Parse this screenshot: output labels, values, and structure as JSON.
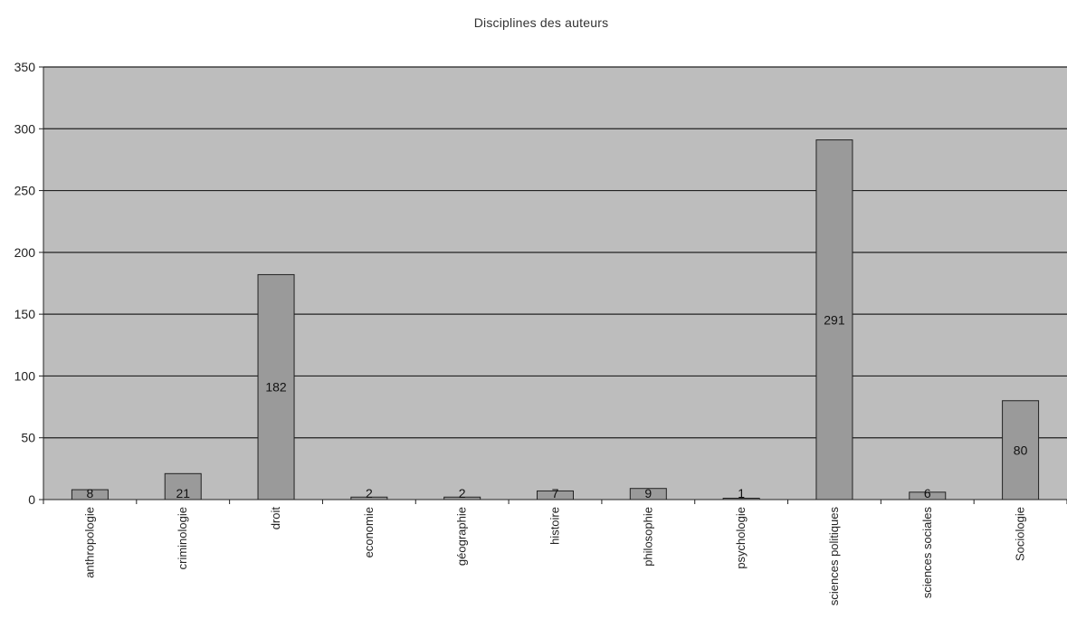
{
  "chart_data": {
    "type": "bar",
    "title": "Disciplines des auteurs",
    "xlabel": "",
    "ylabel": "",
    "categories": [
      "anthropologie",
      "criminologie",
      "droit",
      "economie",
      "géographie",
      "histoire",
      "philosophie",
      "psychologie",
      "sciences politiques",
      "sciences sociales",
      "Sociologie"
    ],
    "values": [
      8,
      21,
      182,
      2,
      2,
      7,
      9,
      1,
      291,
      6,
      80
    ],
    "data_labels": [
      "8",
      "21",
      "182",
      "2",
      "2",
      "7",
      "9",
      "1",
      "291",
      "6",
      "80"
    ],
    "ylim": [
      0,
      350
    ],
    "yticks": [
      0,
      50,
      100,
      150,
      200,
      250,
      300,
      350
    ],
    "grid": true,
    "legend": "none",
    "colors": {
      "plot_bg": "#bdbdbd",
      "bar": "#9a9a9a",
      "bar_stroke": "#222222",
      "grid": "#222222"
    }
  }
}
